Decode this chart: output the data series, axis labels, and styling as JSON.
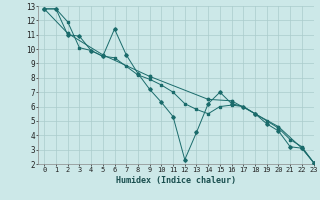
{
  "xlabel": "Humidex (Indice chaleur)",
  "ylabel": "",
  "background_color": "#cce8e8",
  "grid_color": "#aacccc",
  "line_color": "#1a6b6b",
  "xlim": [
    -0.5,
    23
  ],
  "ylim": [
    2,
    13
  ],
  "xticks": [
    0,
    1,
    2,
    3,
    4,
    5,
    6,
    7,
    8,
    9,
    10,
    11,
    12,
    13,
    14,
    15,
    16,
    17,
    18,
    19,
    20,
    21,
    22,
    23
  ],
  "yticks": [
    2,
    3,
    4,
    5,
    6,
    7,
    8,
    9,
    10,
    11,
    12,
    13
  ],
  "series1_x": [
    0,
    1,
    2,
    3,
    4,
    5,
    6,
    7,
    8,
    9,
    10,
    11,
    12,
    13,
    14,
    15,
    16,
    17,
    18,
    19,
    20,
    21,
    22,
    23
  ],
  "series1_y": [
    12.8,
    12.8,
    11.0,
    10.9,
    9.9,
    9.5,
    11.4,
    9.6,
    8.3,
    7.2,
    6.3,
    5.3,
    2.3,
    4.2,
    6.2,
    7.0,
    6.2,
    6.0,
    5.5,
    4.8,
    4.3,
    3.2,
    3.1,
    2.1
  ],
  "series2_x": [
    0,
    1,
    2,
    3,
    4,
    5,
    6,
    7,
    8,
    9,
    10,
    11,
    12,
    13,
    14,
    15,
    16,
    17,
    18,
    19,
    20,
    21,
    22,
    23
  ],
  "series2_y": [
    12.8,
    12.8,
    11.9,
    10.1,
    9.9,
    9.5,
    9.4,
    8.8,
    8.2,
    7.9,
    7.5,
    7.0,
    6.2,
    5.8,
    5.5,
    6.0,
    6.1,
    6.0,
    5.5,
    5.0,
    4.5,
    3.7,
    3.2,
    2.1
  ],
  "series3_x": [
    0,
    2,
    5,
    9,
    14,
    16,
    18,
    20,
    22,
    23
  ],
  "series3_y": [
    12.8,
    11.1,
    9.6,
    8.1,
    6.5,
    6.4,
    5.5,
    4.6,
    3.1,
    2.1
  ]
}
